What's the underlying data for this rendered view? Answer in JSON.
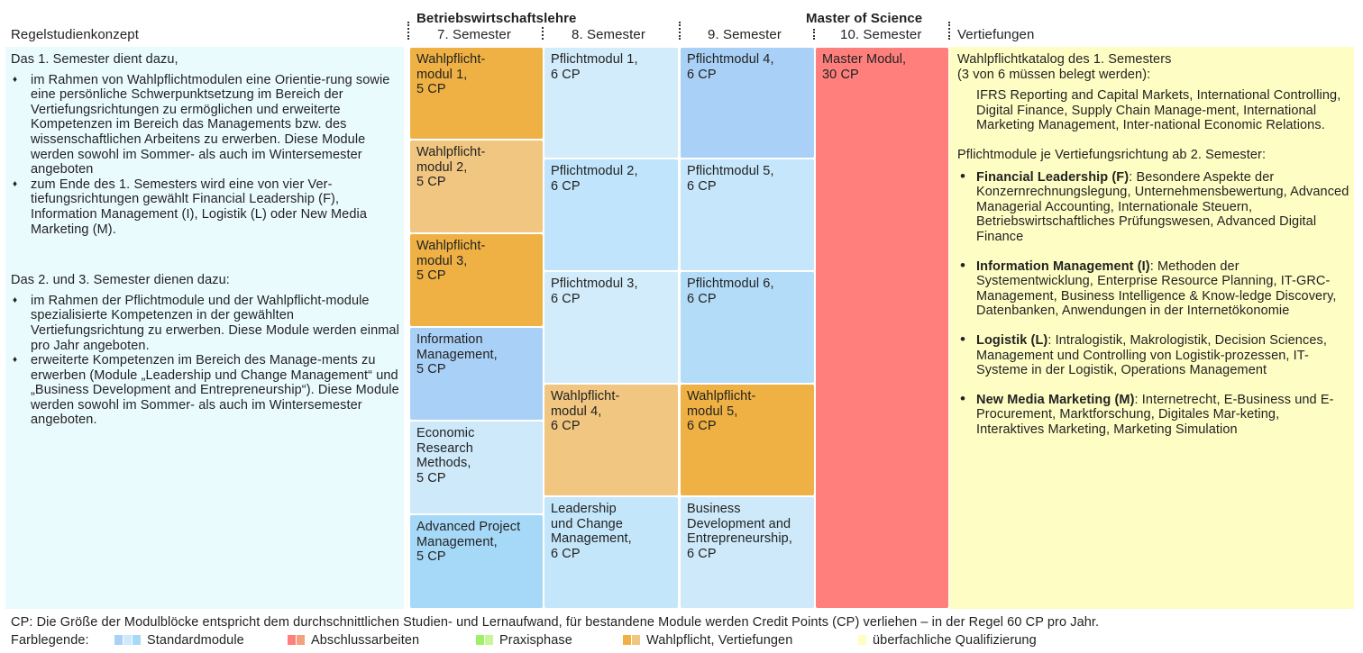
{
  "headers": {
    "left": "Regelstudienkonzept",
    "bwl": "Betriebswirtschaftslehre",
    "sem7": "7. Semester",
    "sem8": "8. Semester",
    "sem9": "9. Semester",
    "msc": "Master of Science",
    "sem10": "10. Semester",
    "right": "Vertiefungen"
  },
  "left_panel": {
    "intro1": "Das 1. Semester dient dazu,",
    "bullets1": [
      "im Rahmen von Wahlpflichtmodulen eine Orientie-rung sowie eine persönliche Schwerpunktsetzung im Bereich der Vertiefungsrichtungen zu ermöglichen und erweiterte Kompetenzen im Bereich das Managements bzw. des wissenschaftlichen Arbeitens zu erwerben. Diese Module werden sowohl im Sommer- als auch im Wintersemester angeboten",
      "zum Ende des 1. Semesters wird eine von vier Ver-tiefungsrichtungen gewählt Financial Leadership (F), Information Management (I), Logistik (L) oder New Media Marketing (M)."
    ],
    "intro2": "Das 2. und 3. Semester dienen dazu:",
    "bullets2": [
      "im Rahmen der Pflichtmodule und der Wahlpflicht-module spezialisierte Kompetenzen in der gewählten Vertiefungsrichtung zu erwerben. Diese Module werden einmal pro Jahr angeboten.",
      "erweiterte Kompetenzen im Bereich des Manage-ments zu erwerben (Module „Leadership und Change Management“ und „Business Development and Entrepreneurship“). Diese Module werden sowohl im Sommer- als auch im Wintersemester angeboten."
    ]
  },
  "modules": {
    "c7": [
      {
        "line1": "Wahlpflicht-",
        "line2": "modul 1,",
        "line3": "5 CP",
        "color": "#efb143"
      },
      {
        "line1": "Wahlpflicht-",
        "line2": "modul 2,",
        "line3": "5 CP",
        "color": "#f1c680"
      },
      {
        "line1": "Wahlpflicht-",
        "line2": "modul 3,",
        "line3": "5 CP",
        "color": "#efb143"
      },
      {
        "line1": "Information",
        "line2": "Management,",
        "line3": "5 CP",
        "color": "#a9d0f6"
      },
      {
        "line1": "Economic",
        "line2": "Research",
        "line3": "Methods,",
        "line4": "5 CP",
        "color": "#cde9fa"
      },
      {
        "line1": "Advanced Project",
        "line2": "Management,",
        "line3": "5 CP",
        "color": "#a6d9f8"
      }
    ],
    "c8": [
      {
        "line1": "Pflichtmodul 1,",
        "line2": "6 CP",
        "color": "#d2ecfb"
      },
      {
        "line1": "Pflichtmodul 2,",
        "line2": "6 CP",
        "color": "#bfe4fb"
      },
      {
        "line1": "Pflichtmodul 3,",
        "line2": "6 CP",
        "color": "#d2ecfb"
      },
      {
        "line1": "Wahlpflicht-",
        "line2": "modul 4,",
        "line3": "6 CP",
        "color": "#f1c680"
      },
      {
        "line1": "Leadership",
        "line2": "und Change",
        "line3": "Management,",
        "line4": "6 CP",
        "color": "#c4e6fa"
      }
    ],
    "c9": [
      {
        "line1": "Pflichtmodul 4,",
        "line2": "6 CP",
        "color": "#a9d0f6"
      },
      {
        "line1": "Pflichtmodul 5,",
        "line2": "6 CP",
        "color": "#c6e6fb"
      },
      {
        "line1": "Pflichtmodul 6,",
        "line2": "6 CP",
        "color": "#b3dcf8"
      },
      {
        "line1": "Wahlpflicht-",
        "line2": "modul 5,",
        "line3": "6 CP",
        "color": "#efb143"
      },
      {
        "line1": "Business",
        "line2": "Development and",
        "line3": "Entrepreneurship,",
        "line4": "6 CP",
        "color": "#cde9fa"
      }
    ],
    "c10": {
      "line1": "Master Modul,",
      "line2": "30 CP",
      "color": "#fe7f7c"
    }
  },
  "right_panel": {
    "intro1": "Wahlpflichtkatalog des 1. Semesters",
    "intro1b": "(3 von 6 müssen belegt werden):",
    "catalog": "IFRS Reporting and Capital Markets, International Controlling, Digital Finance, Supply Chain Manage-ment, International Marketing Management, Inter-national Economic Relations.",
    "intro2": "Pflichtmodule je Vertiefungsrichtung ab 2. Semester:",
    "items": [
      {
        "name": "Financial Leadership (F)",
        "text": ": Besondere Aspekte der Konzernrechnungslegung, Unternehmensbewertung, Advanced Managerial Accounting, Internationale Steuern, Betriebswirtschaftliches Prüfungswesen, Advanced Digital Finance"
      },
      {
        "name": "Information Management (I)",
        "text": ": Methoden der Systementwicklung, Enterprise Resource Planning, IT-GRC-Management, Business Intelligence & Know-ledge Discovery, Datenbanken, Anwendungen in der Internetökonomie"
      },
      {
        "name": "Logistik (L)",
        "text": ": Intralogistik, Makrologistik, Decision Sciences, Management und Controlling von Logistik-prozessen, IT-Systeme in der Logistik, Operations Management"
      },
      {
        "name": "New Media Marketing (M)",
        "text": ": Internetrecht, E-Business und E-Procurement, Marktforschung, Digitales Mar-keting, Interaktives Marketing, Marketing Simulation"
      }
    ]
  },
  "footer": {
    "cp_note": "CP: Die Größe der Modulblöcke entspricht dem durchschnittlichen Studien- und Lernaufwand, für bestandene Module werden Credit Points (CP) verliehen – in der Regel 60 CP pro Jahr.",
    "legend_title": "Farblegende:",
    "legend": [
      {
        "label": "Standardmodule",
        "colors": [
          "#a9d0f6",
          "#cde9fa",
          "#a6d9f8"
        ]
      },
      {
        "label": "Abschlussarbeiten",
        "colors": [
          "#fe7f7c",
          "#f4a07d"
        ]
      },
      {
        "label": "Praxisphase",
        "colors": [
          "#9ef06a",
          "#c8f59a"
        ]
      },
      {
        "label": "Wahlpflicht, Vertiefungen",
        "colors": [
          "#efb143",
          "#f1c680"
        ]
      },
      {
        "label": "überfachliche Qualifizierung",
        "colors": [
          "#fefdc4"
        ]
      }
    ]
  }
}
